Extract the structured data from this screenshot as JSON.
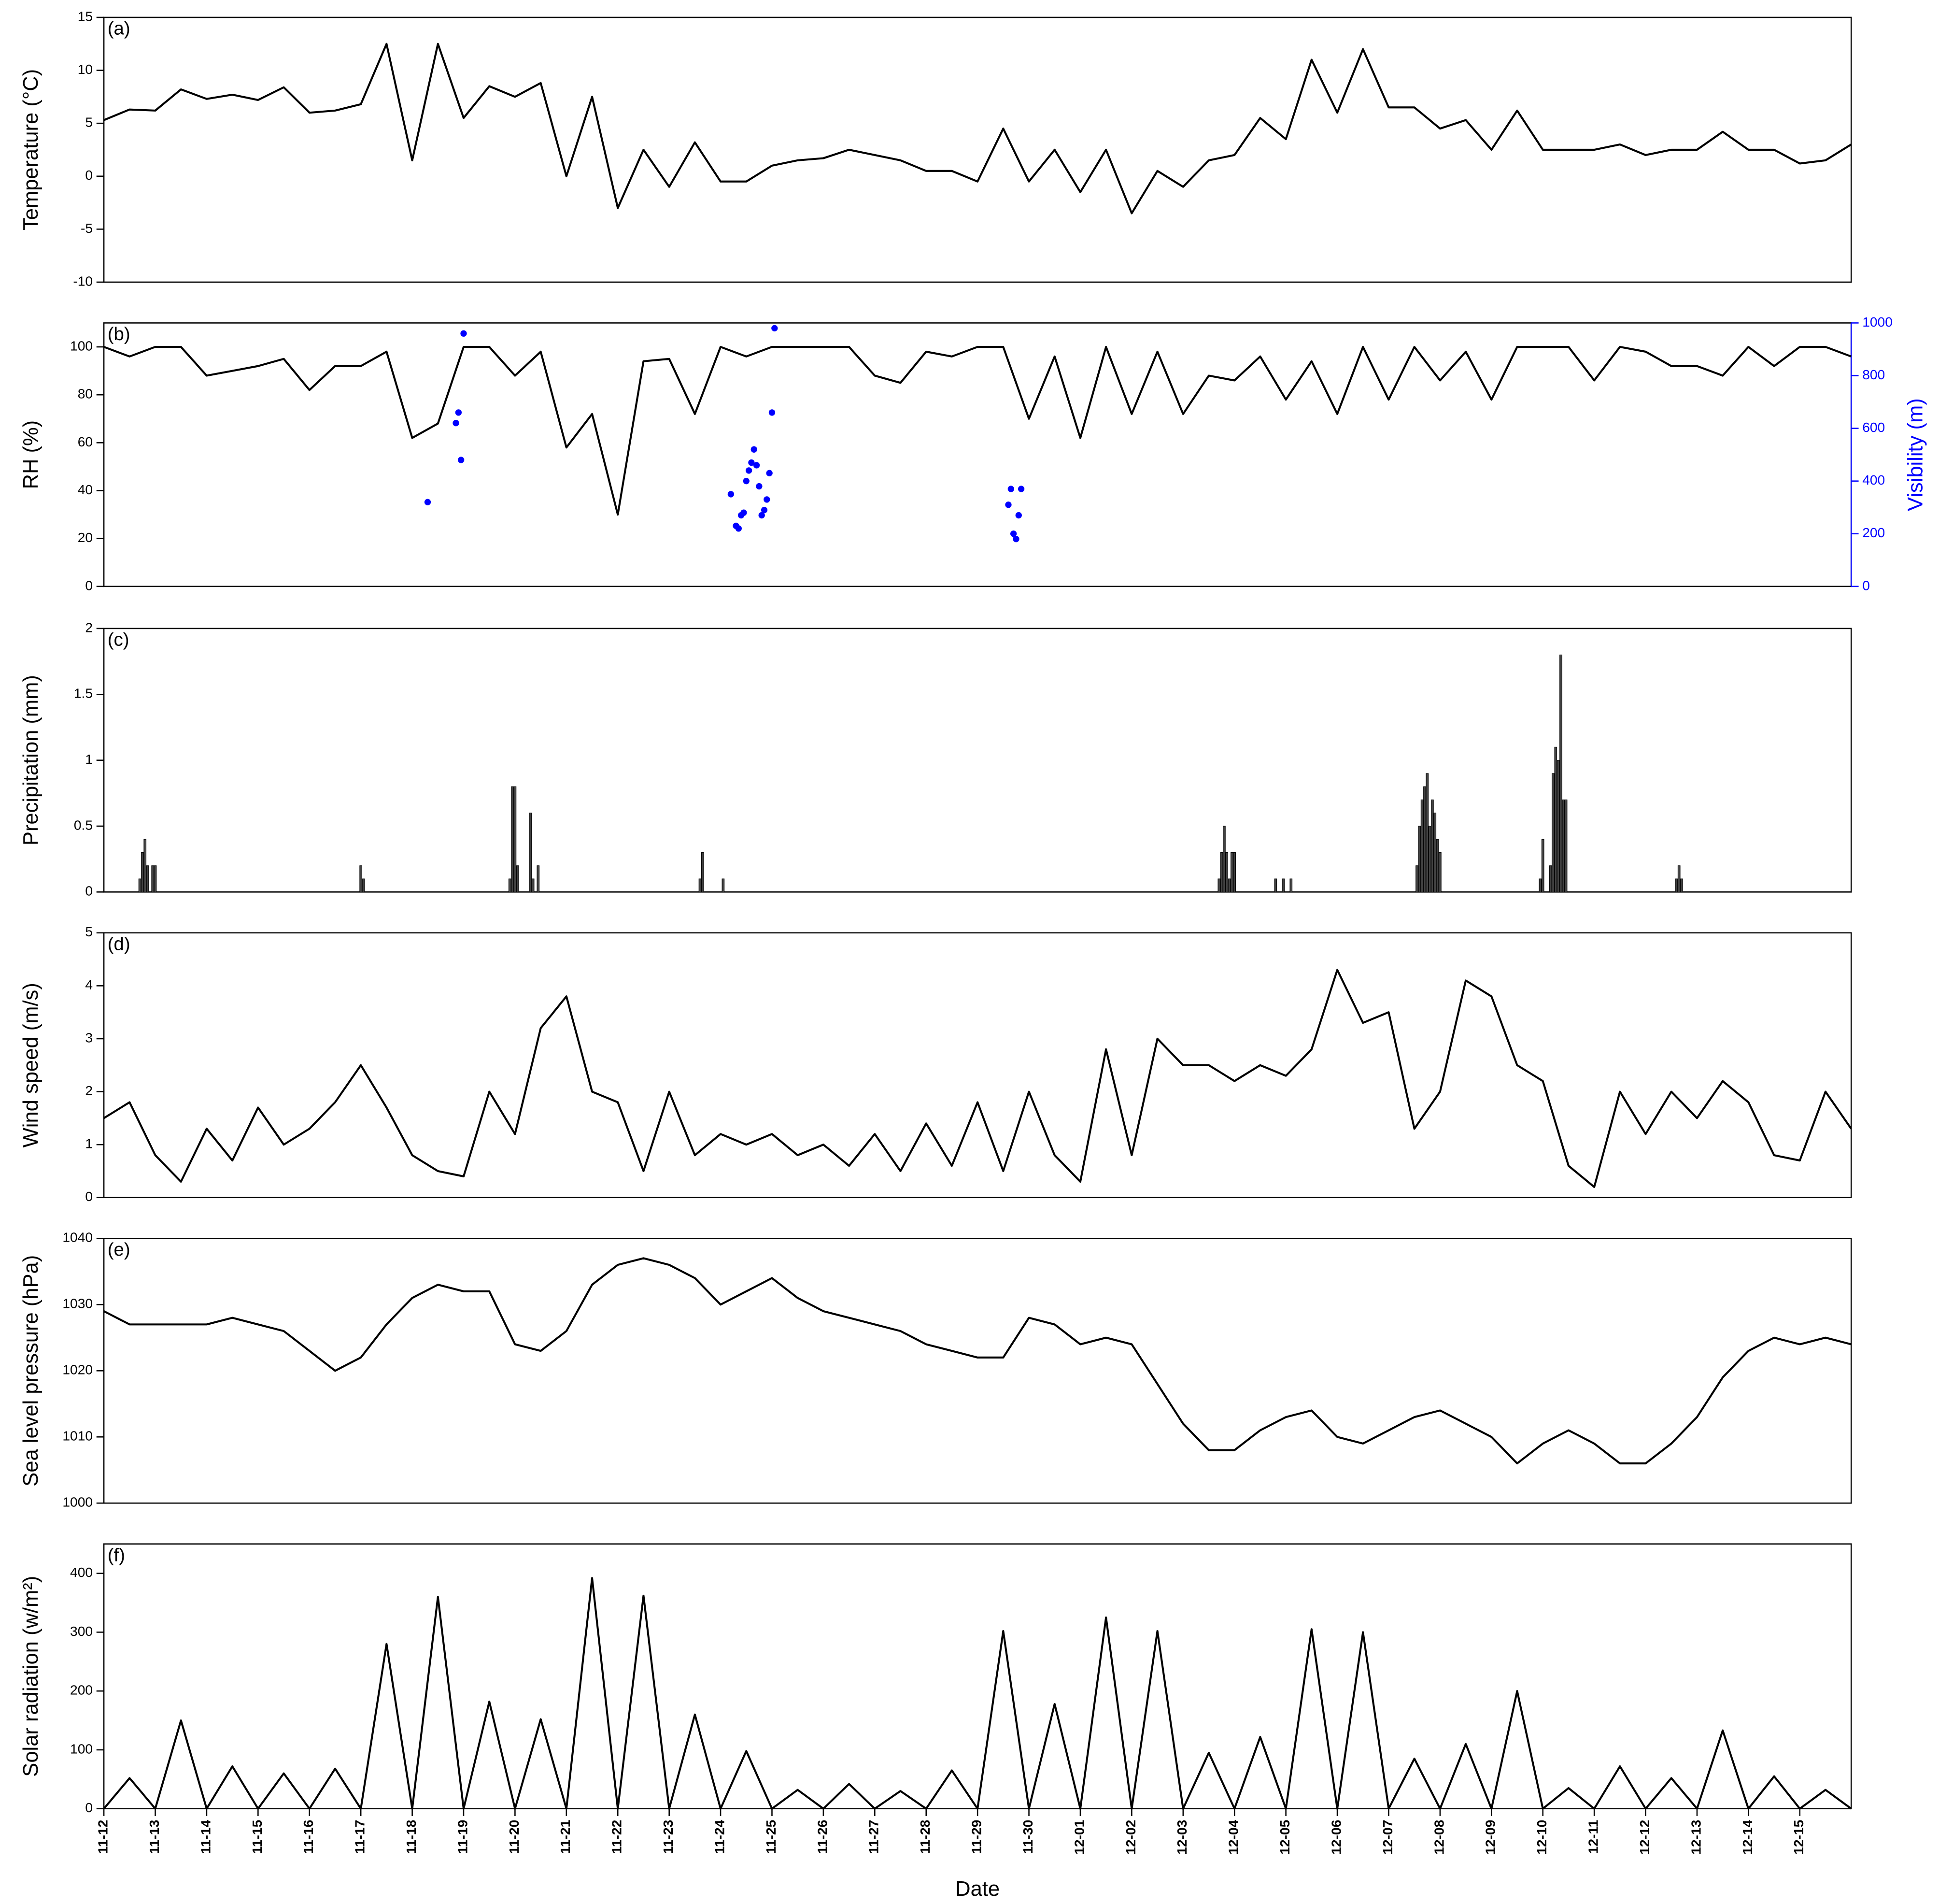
{
  "chart_data": [
    {
      "type": "line",
      "label": "(a)",
      "ylabel": "Temperature (°C)",
      "color": "#000000",
      "x": [
        0,
        0.5,
        1,
        1.5,
        2,
        2.5,
        3,
        3.5,
        4,
        4.5,
        5,
        5.5,
        6,
        6.5,
        7,
        7.5,
        8,
        8.5,
        9,
        9.5,
        10,
        10.5,
        11,
        11.5,
        12,
        12.5,
        13,
        13.5,
        14,
        14.5,
        15,
        15.5,
        16,
        16.5,
        17,
        17.5,
        18,
        18.5,
        19,
        19.5,
        20,
        20.5,
        21,
        21.5,
        22,
        22.5,
        23,
        23.5,
        24,
        24.5,
        25,
        25.5,
        26,
        26.5,
        27,
        27.5,
        28,
        28.5,
        29,
        29.5,
        30,
        30.5,
        31,
        31.5,
        32,
        32.5,
        33,
        33.5,
        34
      ],
      "values": [
        5.3,
        6.3,
        6.2,
        8.2,
        7.3,
        7.7,
        7.2,
        8.4,
        6,
        6.2,
        6.8,
        12.5,
        1.5,
        12.5,
        5.5,
        8.5,
        7.5,
        8.8,
        0,
        7.5,
        -3,
        2.5,
        -1,
        3.2,
        -0.5,
        -0.5,
        1,
        1.5,
        1.7,
        2.5,
        2,
        1.5,
        0.5,
        0.5,
        -0.5,
        4.5,
        -0.5,
        2.5,
        -1.5,
        2.5,
        -3.5,
        0.5,
        -1,
        1.5,
        2,
        5.5,
        3.5,
        11,
        6,
        12,
        6.5,
        6.5,
        4.5,
        5.3,
        2.5,
        6.2,
        2.5,
        2.5,
        2.5,
        3,
        2,
        2.5,
        2.5,
        4.2,
        2.5,
        2.5,
        1.2,
        1.5,
        3
      ],
      "xlim": [
        0,
        34
      ],
      "ylim": [
        -10,
        15
      ],
      "yticks": [
        -10,
        -5,
        0,
        5,
        10,
        15
      ]
    },
    {
      "type": "line",
      "label": "(b)",
      "ylabel": "RH (%)",
      "y2label": "Visibility (m)",
      "y2color": "#0000ff",
      "x": [
        0,
        0.5,
        1,
        1.5,
        2,
        2.5,
        3,
        3.5,
        4,
        4.5,
        5,
        5.5,
        6,
        6.5,
        7,
        7.5,
        8,
        8.5,
        9,
        9.5,
        10,
        10.5,
        11,
        11.5,
        12,
        12.5,
        13,
        13.5,
        14,
        14.5,
        15,
        15.5,
        16,
        16.5,
        17,
        17.5,
        18,
        18.5,
        19,
        19.5,
        20,
        20.5,
        21,
        21.5,
        22,
        22.5,
        23,
        23.5,
        24,
        24.5,
        25,
        25.5,
        26,
        26.5,
        27,
        27.5,
        28,
        28.5,
        29,
        29.5,
        30,
        30.5,
        31,
        31.5,
        32,
        32.5,
        33,
        33.5,
        34
      ],
      "series": [
        {
          "type": "line",
          "color": "#000000",
          "values": [
            100,
            96,
            100,
            100,
            88,
            90,
            92,
            95,
            82,
            92,
            92,
            98,
            62,
            68,
            100,
            100,
            88,
            98,
            58,
            72,
            30,
            94,
            95,
            72,
            100,
            96,
            100,
            100,
            100,
            100,
            88,
            85,
            98,
            96,
            100,
            100,
            70,
            96,
            62,
            100,
            72,
            98,
            72,
            88,
            86,
            96,
            78,
            94,
            72,
            100,
            78,
            100,
            86,
            98,
            78,
            100,
            100,
            100,
            86,
            100,
            98,
            92,
            92,
            88,
            100,
            92,
            100,
            100,
            96
          ]
        },
        {
          "type": "scatter",
          "axis": "y2",
          "color": "#0000ff",
          "x": [
            6.3,
            6.85,
            6.9,
            6.95,
            7.0,
            12.2,
            12.3,
            12.35,
            12.4,
            12.45,
            12.5,
            12.55,
            12.6,
            12.65,
            12.7,
            12.75,
            12.8,
            12.85,
            12.9,
            12.95,
            13.0,
            13.05,
            17.6,
            17.65,
            17.7,
            17.75,
            17.8,
            17.85
          ],
          "values": [
            320,
            620,
            660,
            480,
            960,
            350,
            230,
            220,
            270,
            280,
            400,
            440,
            470,
            520,
            460,
            380,
            270,
            290,
            330,
            430,
            660,
            980,
            310,
            370,
            200,
            180,
            270,
            370
          ]
        }
      ],
      "xlim": [
        0,
        34
      ],
      "ylim": [
        0,
        110
      ],
      "yticks": [
        0,
        20,
        40,
        60,
        80,
        100
      ],
      "y2lim": [
        0,
        1000
      ],
      "y2ticks": [
        0,
        200,
        400,
        600,
        800,
        1000
      ]
    },
    {
      "type": "bar",
      "label": "(c)",
      "ylabel": "Precipitation (mm)",
      "color": "#444444",
      "x": [
        0.7,
        0.75,
        0.8,
        0.85,
        0.95,
        1.0,
        5.0,
        5.05,
        7.9,
        7.95,
        8.0,
        8.05,
        8.3,
        8.35,
        8.45,
        11.6,
        11.65,
        12.05,
        21.7,
        21.75,
        21.8,
        21.85,
        21.9,
        21.95,
        22.0,
        22.8,
        22.95,
        23.1,
        25.55,
        25.6,
        25.65,
        25.7,
        25.75,
        25.8,
        25.85,
        25.9,
        25.95,
        26.0,
        27.95,
        28.0,
        28.15,
        28.2,
        28.25,
        28.3,
        28.35,
        28.4,
        28.45,
        30.6,
        30.65,
        30.7
      ],
      "values": [
        0.1,
        0.3,
        0.4,
        0.2,
        0.2,
        0.2,
        0.2,
        0.1,
        0.1,
        0.8,
        0.8,
        0.2,
        0.6,
        0.1,
        0.2,
        0.1,
        0.3,
        0.1,
        0.1,
        0.3,
        0.5,
        0.3,
        0.1,
        0.3,
        0.3,
        0.1,
        0.1,
        0.1,
        0.2,
        0.5,
        0.7,
        0.8,
        0.9,
        0.5,
        0.7,
        0.6,
        0.4,
        0.3,
        0.1,
        0.4,
        0.2,
        0.9,
        1.1,
        1.0,
        1.8,
        0.7,
        0.7,
        0.1,
        0.2,
        0.1
      ],
      "xlim": [
        0,
        34
      ],
      "ylim": [
        0,
        2
      ],
      "yticks": [
        0,
        0.5,
        1,
        1.5,
        2
      ]
    },
    {
      "type": "line",
      "label": "(d)",
      "ylabel": "Wind speed (m/s)",
      "color": "#000000",
      "x": [
        0,
        0.5,
        1,
        1.5,
        2,
        2.5,
        3,
        3.5,
        4,
        4.5,
        5,
        5.5,
        6,
        6.5,
        7,
        7.5,
        8,
        8.5,
        9,
        9.5,
        10,
        10.5,
        11,
        11.5,
        12,
        12.5,
        13,
        13.5,
        14,
        14.5,
        15,
        15.5,
        16,
        16.5,
        17,
        17.5,
        18,
        18.5,
        19,
        19.5,
        20,
        20.5,
        21,
        21.5,
        22,
        22.5,
        23,
        23.5,
        24,
        24.5,
        25,
        25.5,
        26,
        26.5,
        27,
        27.5,
        28,
        28.5,
        29,
        29.5,
        30,
        30.5,
        31,
        31.5,
        32,
        32.5,
        33,
        33.5,
        34
      ],
      "values": [
        1.5,
        1.8,
        0.8,
        0.3,
        1.3,
        0.7,
        1.7,
        1,
        1.3,
        1.8,
        2.5,
        1.7,
        0.8,
        0.5,
        0.4,
        2,
        1.2,
        3.2,
        3.8,
        2,
        1.8,
        0.5,
        2,
        0.8,
        1.2,
        1,
        1.2,
        0.8,
        1,
        0.6,
        1.2,
        0.5,
        1.4,
        0.6,
        1.8,
        0.5,
        2,
        0.8,
        0.3,
        2.8,
        0.8,
        3,
        2.5,
        2.5,
        2.2,
        2.5,
        2.3,
        2.8,
        4.3,
        3.3,
        3.5,
        1.3,
        2,
        4.1,
        3.8,
        2.5,
        2.2,
        0.6,
        0.2,
        2,
        1.2,
        2,
        1.5,
        2.2,
        1.8,
        0.8,
        0.7,
        2,
        1.3
      ],
      "xlim": [
        0,
        34
      ],
      "ylim": [
        0,
        5
      ],
      "yticks": [
        0,
        1,
        2,
        3,
        4,
        5
      ]
    },
    {
      "type": "line",
      "label": "(e)",
      "ylabel": "Sea level pressure (hPa)",
      "color": "#000000",
      "x": [
        0,
        0.5,
        1,
        1.5,
        2,
        2.5,
        3,
        3.5,
        4,
        4.5,
        5,
        5.5,
        6,
        6.5,
        7,
        7.5,
        8,
        8.5,
        9,
        9.5,
        10,
        10.5,
        11,
        11.5,
        12,
        12.5,
        13,
        13.5,
        14,
        14.5,
        15,
        15.5,
        16,
        16.5,
        17,
        17.5,
        18,
        18.5,
        19,
        19.5,
        20,
        20.5,
        21,
        21.5,
        22,
        22.5,
        23,
        23.5,
        24,
        24.5,
        25,
        25.5,
        26,
        26.5,
        27,
        27.5,
        28,
        28.5,
        29,
        29.5,
        30,
        30.5,
        31,
        31.5,
        32,
        32.5,
        33,
        33.5,
        34
      ],
      "values": [
        1029,
        1027,
        1027,
        1027,
        1027,
        1028,
        1027,
        1026,
        1023,
        1020,
        1022,
        1027,
        1031,
        1033,
        1032,
        1032,
        1024,
        1023,
        1026,
        1033,
        1036,
        1037,
        1036,
        1034,
        1030,
        1032,
        1034,
        1031,
        1029,
        1028,
        1027,
        1026,
        1024,
        1023,
        1022,
        1022,
        1028,
        1027,
        1024,
        1025,
        1024,
        1018,
        1012,
        1008,
        1008,
        1011,
        1013,
        1014,
        1010,
        1009,
        1011,
        1013,
        1014,
        1012,
        1010,
        1006,
        1009,
        1011,
        1009,
        1006,
        1006,
        1009,
        1013,
        1019,
        1023,
        1025,
        1024,
        1025,
        1024
      ],
      "xlim": [
        0,
        34
      ],
      "ylim": [
        1000,
        1040
      ],
      "yticks": [
        1000,
        1010,
        1020,
        1030,
        1040
      ]
    },
    {
      "type": "line",
      "label": "(f)",
      "ylabel": "Solar radiation (w/m²)",
      "xlabel": "Date",
      "color": "#000000",
      "x": [
        0,
        0.5,
        1,
        1.5,
        2,
        2.5,
        3,
        3.5,
        4,
        4.5,
        5,
        5.5,
        6,
        6.5,
        7,
        7.5,
        8,
        8.5,
        9,
        9.5,
        10,
        10.5,
        11,
        11.5,
        12,
        12.5,
        13,
        13.5,
        14,
        14.5,
        15,
        15.5,
        16,
        16.5,
        17,
        17.5,
        18,
        18.5,
        19,
        19.5,
        20,
        20.5,
        21,
        21.5,
        22,
        22.5,
        23,
        23.5,
        24,
        24.5,
        25,
        25.5,
        26,
        26.5,
        27,
        27.5,
        28,
        28.5,
        29,
        29.5,
        30,
        30.5,
        31,
        31.5,
        32,
        32.5,
        33,
        33.5,
        34
      ],
      "values": [
        0,
        52,
        0,
        150,
        0,
        72,
        0,
        60,
        0,
        68,
        0,
        280,
        0,
        360,
        0,
        182,
        0,
        152,
        0,
        392,
        0,
        362,
        0,
        160,
        0,
        98,
        0,
        32,
        0,
        42,
        0,
        30,
        0,
        65,
        0,
        302,
        0,
        178,
        0,
        325,
        0,
        302,
        0,
        95,
        0,
        122,
        0,
        305,
        0,
        300,
        0,
        85,
        0,
        110,
        0,
        200,
        0,
        35,
        0,
        72,
        0,
        52,
        0,
        133,
        0,
        55,
        0,
        32,
        0
      ],
      "xlim": [
        0,
        34
      ],
      "ylim": [
        0,
        450
      ],
      "yticks": [
        0,
        100,
        200,
        300,
        400
      ],
      "xticks": [
        {
          "value": 0,
          "label": "11-12"
        },
        {
          "value": 1,
          "label": "11-13"
        },
        {
          "value": 2,
          "label": "11-14"
        },
        {
          "value": 3,
          "label": "11-15"
        },
        {
          "value": 4,
          "label": "11-16"
        },
        {
          "value": 5,
          "label": "11-17"
        },
        {
          "value": 6,
          "label": "11-18"
        },
        {
          "value": 7,
          "label": "11-19"
        },
        {
          "value": 8,
          "label": "11-20"
        },
        {
          "value": 9,
          "label": "11-21"
        },
        {
          "value": 10,
          "label": "11-22"
        },
        {
          "value": 11,
          "label": "11-23"
        },
        {
          "value": 12,
          "label": "11-24"
        },
        {
          "value": 13,
          "label": "11-25"
        },
        {
          "value": 14,
          "label": "11-26"
        },
        {
          "value": 15,
          "label": "11-27"
        },
        {
          "value": 16,
          "label": "11-28"
        },
        {
          "value": 17,
          "label": "11-29"
        },
        {
          "value": 18,
          "label": "11-30"
        },
        {
          "value": 19,
          "label": "12-01"
        },
        {
          "value": 20,
          "label": "12-02"
        },
        {
          "value": 21,
          "label": "12-03"
        },
        {
          "value": 22,
          "label": "12-04"
        },
        {
          "value": 23,
          "label": "12-05"
        },
        {
          "value": 24,
          "label": "12-06"
        },
        {
          "value": 25,
          "label": "12-07"
        },
        {
          "value": 26,
          "label": "12-08"
        },
        {
          "value": 27,
          "label": "12-09"
        },
        {
          "value": 28,
          "label": "12-10"
        },
        {
          "value": 29,
          "label": "12-11"
        },
        {
          "value": 30,
          "label": "12-12"
        },
        {
          "value": 31,
          "label": "12-13"
        },
        {
          "value": 32,
          "label": "12-14"
        },
        {
          "value": 33,
          "label": "12-15"
        }
      ]
    }
  ]
}
